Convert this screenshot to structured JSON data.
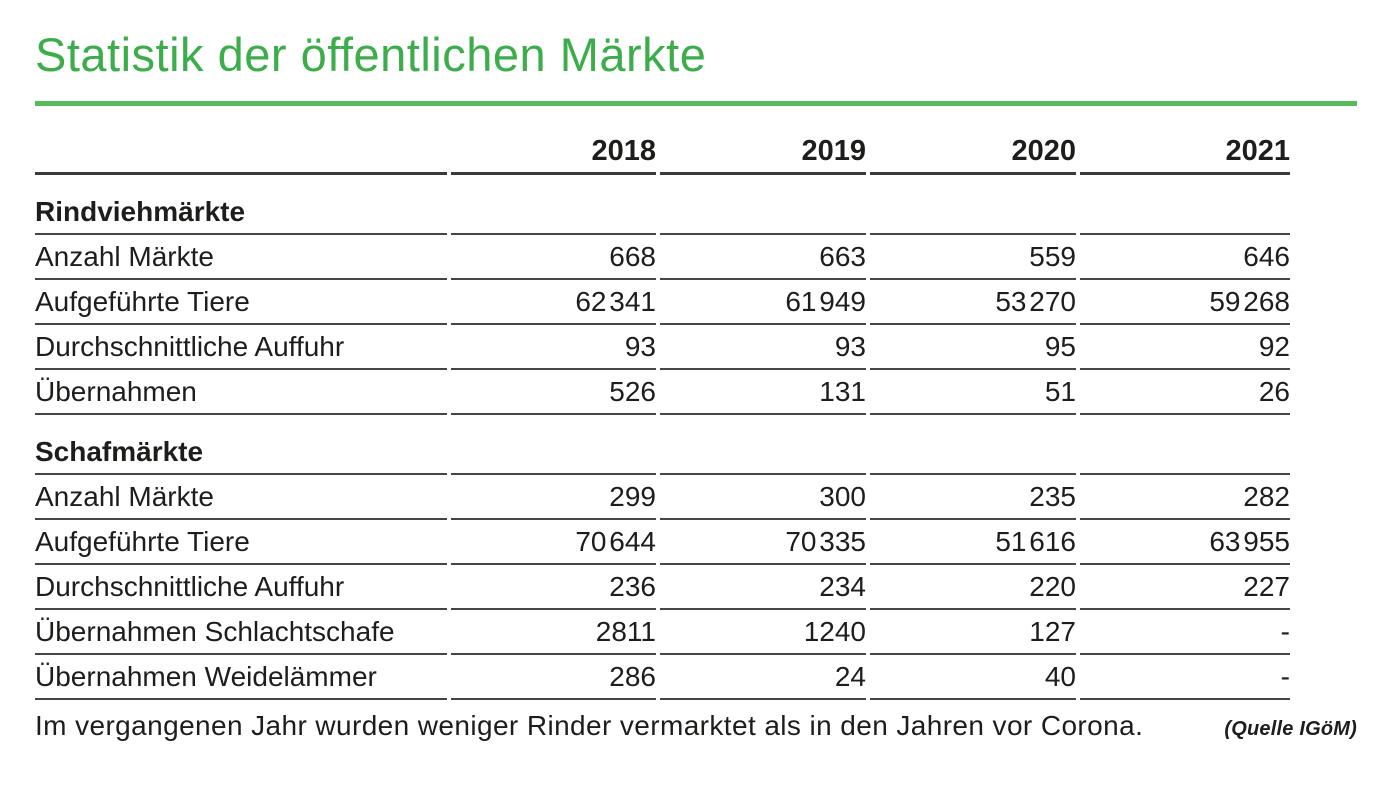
{
  "title": "Statistik der öffentlichen Märkte",
  "accent_color": "#3bad4a",
  "rule_color": "#55bb5b",
  "table": {
    "columns": [
      "2018",
      "2019",
      "2020",
      "2021"
    ],
    "sections": [
      {
        "title": "Rindviehmärkte",
        "rows": [
          {
            "label": "Anzahl Märkte",
            "values": [
              "668",
              "663",
              "559",
              "646"
            ]
          },
          {
            "label": "Aufgeführte Tiere",
            "values": [
              "62 341",
              "61 949",
              "53 270",
              "59 268"
            ]
          },
          {
            "label": "Durchschnittliche Auffuhr",
            "values": [
              "93",
              "93",
              "95",
              "92"
            ]
          },
          {
            "label": "Übernahmen",
            "values": [
              "526",
              "131",
              "51",
              "26"
            ]
          }
        ]
      },
      {
        "title": "Schafmärkte",
        "rows": [
          {
            "label": "Anzahl Märkte",
            "values": [
              "299",
              "300",
              "235",
              "282"
            ]
          },
          {
            "label": "Aufgeführte Tiere",
            "values": [
              "70 644",
              "70 335",
              "51 616",
              "63 955"
            ]
          },
          {
            "label": "Durchschnittliche Auffuhr",
            "values": [
              "236",
              "234",
              "220",
              "227"
            ]
          },
          {
            "label": "Übernahmen Schlachtschafe",
            "values": [
              "2811",
              "1240",
              "127",
              "-"
            ]
          },
          {
            "label": "Übernahmen Weidelämmer",
            "values": [
              "286",
              "24",
              "40",
              "-"
            ]
          }
        ]
      }
    ]
  },
  "footer": {
    "text": "Im vergangenen Jahr wurden weniger Rinder vermarktet als in den Jahren vor Corona.",
    "source": "(Quelle IGöM)"
  },
  "chart_data": {
    "type": "table",
    "title": "Statistik der öffentlichen Märkte",
    "columns": [
      "2018",
      "2019",
      "2020",
      "2021"
    ],
    "sections": [
      {
        "name": "Rindviehmärkte",
        "rows": [
          {
            "label": "Anzahl Märkte",
            "values": [
              668,
              663,
              559,
              646
            ]
          },
          {
            "label": "Aufgeführte Tiere",
            "values": [
              62341,
              61949,
              53270,
              59268
            ]
          },
          {
            "label": "Durchschnittliche Auffuhr",
            "values": [
              93,
              93,
              95,
              92
            ]
          },
          {
            "label": "Übernahmen",
            "values": [
              526,
              131,
              51,
              26
            ]
          }
        ]
      },
      {
        "name": "Schafmärkte",
        "rows": [
          {
            "label": "Anzahl Märkte",
            "values": [
              299,
              300,
              235,
              282
            ]
          },
          {
            "label": "Aufgeführte Tiere",
            "values": [
              70644,
              70335,
              51616,
              63955
            ]
          },
          {
            "label": "Durchschnittliche Auffuhr",
            "values": [
              236,
              234,
              220,
              227
            ]
          },
          {
            "label": "Übernahmen Schlachtschafe",
            "values": [
              2811,
              1240,
              127,
              null
            ]
          },
          {
            "label": "Übernahmen Weidelämmer",
            "values": [
              286,
              24,
              40,
              null
            ]
          }
        ]
      }
    ],
    "caption": "Im vergangenen Jahr wurden weniger Rinder vermarktet als in den Jahren vor Corona.",
    "source": "(Quelle IGöM)"
  }
}
